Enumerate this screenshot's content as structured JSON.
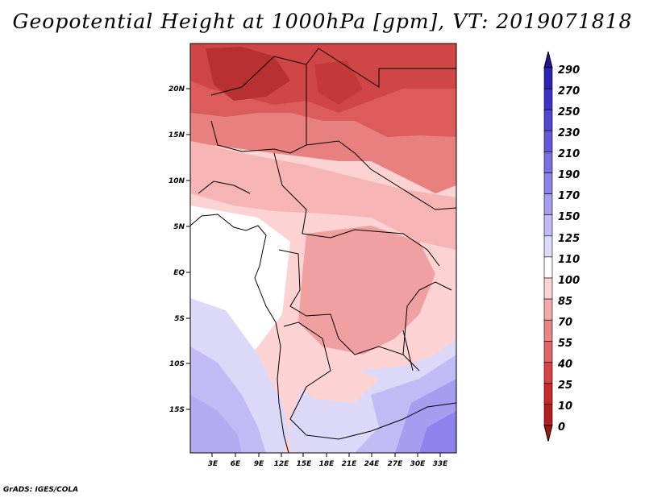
{
  "title": "Geopotential Height at 1000hPa [gpm], VT: 2019071818",
  "credit": "GrADS: IGES/COLA",
  "map": {
    "region": "Central Africa",
    "field": "1000hPa geopotential height"
  },
  "axes": {
    "lon_labels": [
      "3E",
      "6E",
      "9E",
      "12E",
      "15E",
      "18E",
      "21E",
      "24E",
      "27E",
      "30E",
      "33E"
    ],
    "lat_labels": [
      "20N",
      "15N",
      "10N",
      "5N",
      "EQ",
      "5S",
      "10S",
      "15S"
    ]
  },
  "colorbar": {
    "levels": [
      "290",
      "270",
      "250",
      "230",
      "210",
      "190",
      "170",
      "150",
      "125",
      "110",
      "100",
      "85",
      "70",
      "55",
      "40",
      "25",
      "10",
      "0"
    ],
    "colors": [
      "#1e1496",
      "#2a24b4",
      "#3c32c8",
      "#5046d2",
      "#6458dc",
      "#7a6ee6",
      "#9082ec",
      "#a89cf0",
      "#c2baf4",
      "#dcd8f8",
      "#ffffff",
      "#fcd2d2",
      "#f4aaaa",
      "#ec8686",
      "#e26464",
      "#d84444",
      "#c82a2a",
      "#b41e1e",
      "#a01414"
    ]
  }
}
